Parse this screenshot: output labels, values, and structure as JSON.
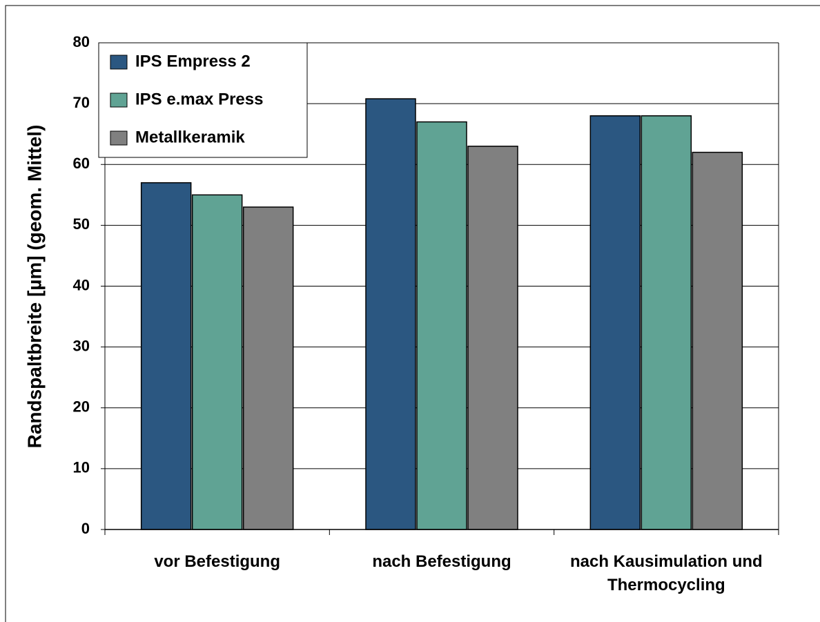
{
  "chart_data": {
    "type": "bar",
    "ylabel": "Randspaltbreite [µm] (geom. Mittel)",
    "categories": [
      "vor Befestigung",
      "nach Befestigung",
      "nach Kausimulation und Thermocycling"
    ],
    "series": [
      {
        "name": "IPS Empress 2",
        "color": "#2b5781",
        "values": [
          57,
          70.8,
          68
        ]
      },
      {
        "name": "IPS e.max Press",
        "color": "#60a394",
        "values": [
          55,
          67,
          68
        ]
      },
      {
        "name": "Metallkeramik",
        "color": "#808080",
        "values": [
          53,
          63,
          62
        ]
      }
    ],
    "ylim": [
      0,
      80
    ],
    "yticks": [
      0,
      10,
      20,
      30,
      40,
      50,
      60,
      70,
      80
    ],
    "grid": true,
    "legend": "top-left"
  }
}
